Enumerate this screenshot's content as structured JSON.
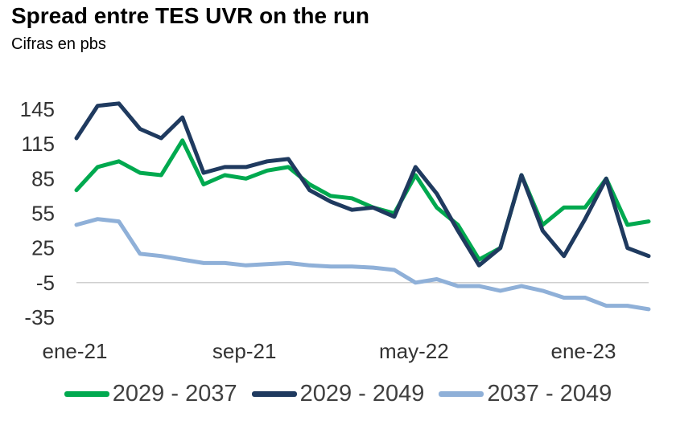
{
  "title": "Spread entre TES UVR on the run",
  "subtitle": "Cifras en pbs",
  "chart_data": {
    "type": "line",
    "title": "Spread entre TES UVR on the run",
    "subtitle": "Cifras en pbs",
    "ylim": [
      -35,
      160
    ],
    "y_ticks": [
      "145",
      "115",
      "85",
      "55",
      "25",
      "-5",
      "-35"
    ],
    "y_tick_values": [
      145,
      115,
      85,
      55,
      25,
      -5,
      -35
    ],
    "x_ticks": [
      "ene-21",
      "sep-21",
      "may-22",
      "ene-23"
    ],
    "x_tick_index": [
      0,
      8,
      16,
      24
    ],
    "x": [
      "ene-21",
      "feb-21",
      "mar-21",
      "abr-21",
      "may-21",
      "jun-21",
      "jul-21",
      "ago-21",
      "sep-21",
      "oct-21",
      "nov-21",
      "dic-21",
      "ene-22",
      "feb-22",
      "mar-22",
      "abr-22",
      "may-22",
      "jun-22",
      "jul-22",
      "ago-22",
      "sep-22",
      "oct-22",
      "nov-22",
      "dic-22",
      "ene-23",
      "feb-23",
      "mar-23",
      "abr-23"
    ],
    "grid": false,
    "zero_line": -5,
    "legend": "bottom",
    "series": [
      {
        "name": "2029 - 2037",
        "color": "#00A94F",
        "values": [
          75,
          95,
          100,
          90,
          88,
          118,
          80,
          88,
          85,
          92,
          95,
          80,
          70,
          68,
          60,
          55,
          88,
          60,
          45,
          15,
          25,
          88,
          45,
          60,
          60,
          85,
          45,
          48
        ]
      },
      {
        "name": "2029 - 2049",
        "color": "#1F3A5F",
        "values": [
          120,
          148,
          150,
          128,
          120,
          138,
          90,
          95,
          95,
          100,
          102,
          75,
          65,
          58,
          60,
          52,
          95,
          72,
          40,
          10,
          25,
          88,
          40,
          18,
          50,
          85,
          25,
          18
        ]
      },
      {
        "name": "2037 - 2049",
        "color": "#8FB0D8",
        "values": [
          45,
          50,
          48,
          20,
          18,
          15,
          12,
          12,
          10,
          11,
          12,
          10,
          9,
          9,
          8,
          6,
          -5,
          -2,
          -8,
          -8,
          -12,
          -8,
          -12,
          -18,
          -18,
          -25,
          -25,
          -28
        ]
      }
    ]
  }
}
